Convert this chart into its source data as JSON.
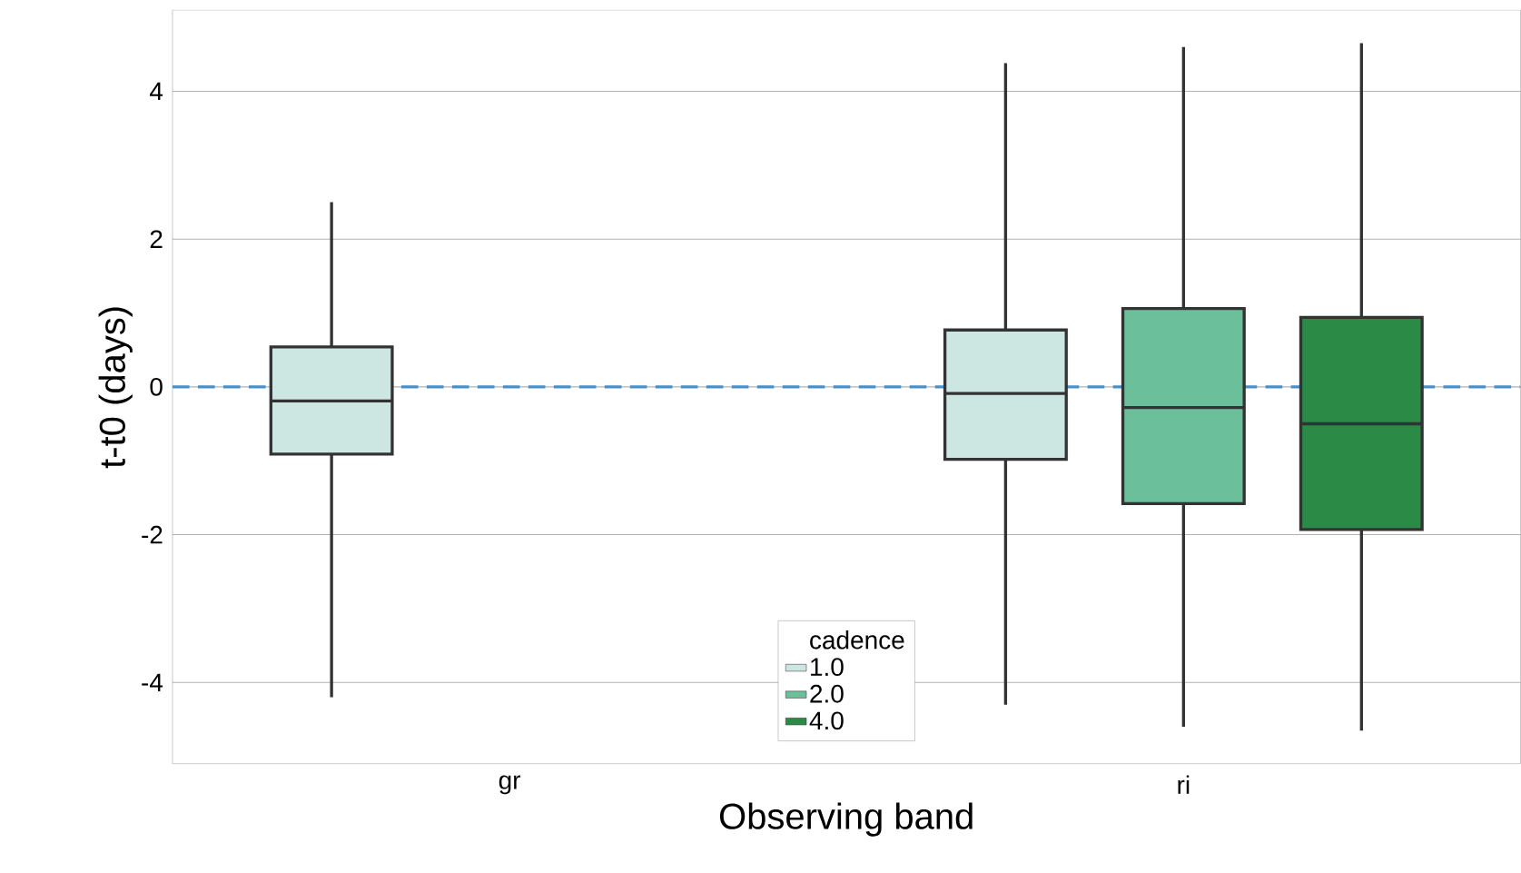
{
  "chart_data": {
    "type": "box",
    "xlabel": "Observing band",
    "ylabel": "t-t0 (days)",
    "categories": [
      "gr",
      "ri"
    ],
    "legend_title": "cadence",
    "series": [
      {
        "name": "1.0",
        "color": "#cce6e2",
        "boxes": [
          {
            "low": -4.2,
            "q1": -0.91,
            "median": -0.19,
            "q3": 0.54,
            "high": 2.5
          },
          {
            "low": -4.3,
            "q1": -0.98,
            "median": -0.09,
            "q3": 0.77,
            "high": 4.38
          }
        ]
      },
      {
        "name": "2.0",
        "color": "#6bbf9a",
        "boxes": [
          null,
          {
            "low": -4.6,
            "q1": -1.58,
            "median": -0.28,
            "q3": 1.06,
            "high": 4.6
          }
        ]
      },
      {
        "name": "4.0",
        "color": "#2a8a46",
        "boxes": [
          null,
          {
            "low": -4.65,
            "q1": -1.93,
            "median": -0.5,
            "q3": 0.94,
            "high": 4.65
          }
        ]
      }
    ],
    "ylim": [
      -5.1,
      5.1
    ],
    "yticks": [
      -4,
      -2,
      0,
      2,
      4
    ],
    "ref_lines": [
      {
        "axis": "y",
        "value": 0,
        "color": "#4a90c8",
        "line_style": "dashed"
      }
    ],
    "grid": "y",
    "legend": "bottom"
  }
}
